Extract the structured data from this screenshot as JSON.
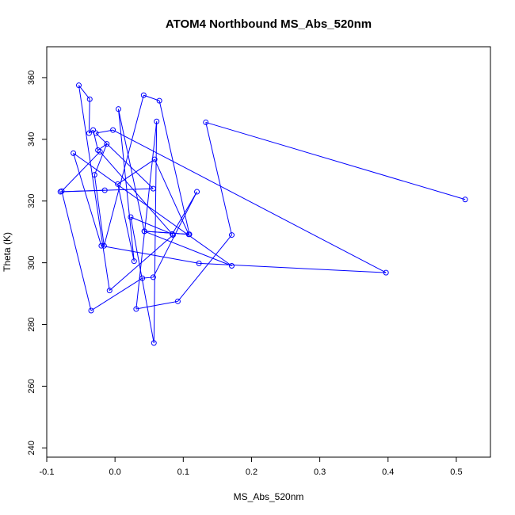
{
  "chart_data": {
    "type": "line",
    "title": "ATOM4 Northbound MS_Abs_520nm",
    "xlabel": "MS_Abs_520nm",
    "ylabel": "Theta (K)",
    "xlim": [
      -0.1,
      0.55
    ],
    "ylim": [
      237,
      370
    ],
    "x_ticks": [
      -0.1,
      0.0,
      0.1,
      0.2,
      0.3,
      0.4,
      0.5
    ],
    "x_tick_labels": [
      "-0.1",
      "0.0",
      "0.1",
      "0.2",
      "0.3",
      "0.4",
      "0.5"
    ],
    "y_ticks": [
      240,
      260,
      280,
      300,
      320,
      340,
      360
    ],
    "y_tick_labels": [
      "240",
      "260",
      "280",
      "300",
      "320",
      "340",
      "360"
    ],
    "grid": false,
    "marker": "open-circle",
    "color": "#0000ff",
    "series": [
      {
        "x": [
          0.513,
          0.133,
          0.171,
          0.092,
          0.031,
          0.061,
          0.057,
          0.023,
          0.084,
          0.12,
          0.056,
          0.04,
          -0.035,
          -0.078,
          -0.022,
          0.085,
          -0.008,
          -0.053,
          -0.037,
          -0.038,
          -0.032,
          -0.025,
          -0.012,
          -0.03,
          -0.016,
          0.042,
          0.065,
          0.109,
          0.043,
          0.005,
          0.028,
          0.004,
          0.058,
          0.108,
          0.043,
          0.171,
          -0.061,
          -0.02,
          0.123,
          0.397,
          -0.003,
          -0.028,
          0.056,
          -0.08,
          -0.015
        ],
        "y": [
          320.5,
          345.5,
          309.0,
          287.5,
          285.0,
          345.8,
          274.0,
          314.8,
          309.3,
          323.0,
          295.3,
          295.0,
          284.5,
          323.2,
          336.0,
          309.0,
          291.0,
          357.5,
          353.0,
          342.0,
          343.0,
          336.5,
          338.5,
          328.5,
          305.5,
          354.3,
          352.5,
          309.2,
          310.2,
          349.8,
          300.5,
          325.5,
          333.5,
          309.2,
          310.2,
          299.0,
          335.5,
          305.5,
          299.8,
          296.8,
          343.0,
          342.0,
          324.0,
          323.0,
          323.5
        ]
      }
    ]
  }
}
